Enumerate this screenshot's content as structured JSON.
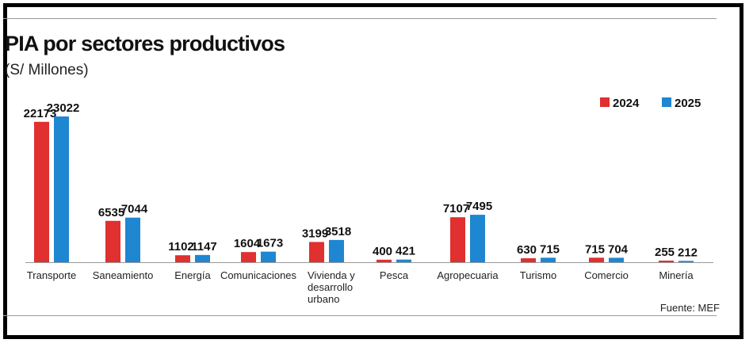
{
  "header": {
    "title": "PIA por sectores productivos",
    "subtitle": "(S/ Millones)"
  },
  "footer": {
    "source": "Fuente: MEF"
  },
  "colors": {
    "series_2024": "#e0302f",
    "series_2025": "#1f86d1",
    "axis": "#999999"
  },
  "chart_data": {
    "type": "bar",
    "title": "PIA por sectores productivos",
    "subtitle": "(S/ Millones)",
    "categories": [
      "Transporte",
      "Saneamiento",
      "Energía",
      "Comunicaciones",
      "Vivienda y desarrollo urbano",
      "Pesca",
      "Agropecuaria",
      "Turismo",
      "Comercio",
      "Minería"
    ],
    "category_lines": [
      [
        "Transporte"
      ],
      [
        "Saneamiento"
      ],
      [
        "Energía"
      ],
      [
        "Comunicaciones"
      ],
      [
        "Vivienda y",
        "desarrollo",
        "urbano"
      ],
      [
        "Pesca"
      ],
      [
        "Agropecuaria"
      ],
      [
        "Turismo"
      ],
      [
        "Comercio"
      ],
      [
        "Minería"
      ]
    ],
    "series": [
      {
        "name": "2024",
        "values": [
          22173,
          6535,
          1102,
          1604,
          3199,
          400,
          7107,
          630,
          715,
          255
        ]
      },
      {
        "name": "2025",
        "values": [
          23022,
          7044,
          1147,
          1673,
          3518,
          421,
          7495,
          715,
          704,
          212
        ]
      }
    ],
    "legend_position": "top-right",
    "grid": false,
    "xlabel": "",
    "ylabel": ""
  }
}
